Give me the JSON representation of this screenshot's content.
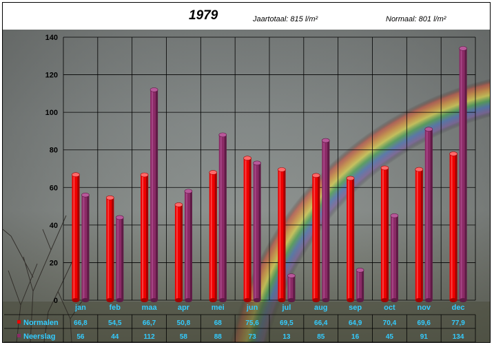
{
  "header": {
    "title": "1979",
    "total_label": "Jaartotaal: 815 l/m²",
    "normal_label": "Normaal: 801 l/m²"
  },
  "colors": {
    "normalen": "#ee0000",
    "neerslag": "#8b2a66",
    "grid": "#000000",
    "axis_text": "#000000",
    "table_text": "#33ccff"
  },
  "chart_data": {
    "type": "bar",
    "categories": [
      "jan",
      "feb",
      "maa",
      "apr",
      "mei",
      "jun",
      "jul",
      "aug",
      "sep",
      "oct",
      "nov",
      "dec"
    ],
    "series": [
      {
        "name": "Normalen",
        "values": [
          66.8,
          54.5,
          66.7,
          50.8,
          68,
          75.6,
          69.5,
          66.4,
          64.9,
          70.4,
          69.6,
          77.9
        ],
        "labels": [
          "66,8",
          "54,5",
          "66,7",
          "50,8",
          "68",
          "75,6",
          "69,5",
          "66,4",
          "64,9",
          "70,4",
          "69,6",
          "77,9"
        ]
      },
      {
        "name": "Neerslag",
        "values": [
          56,
          44,
          112,
          58,
          88,
          73,
          13,
          85,
          16,
          45,
          91,
          134
        ],
        "labels": [
          "56",
          "44",
          "112",
          "58",
          "88",
          "73",
          "13",
          "85",
          "16",
          "45",
          "91",
          "134"
        ]
      }
    ],
    "ylim": [
      0,
      140
    ],
    "yticks": [
      0,
      20,
      40,
      60,
      80,
      100,
      120,
      140
    ],
    "grid": true,
    "legend": "data table below chart"
  }
}
